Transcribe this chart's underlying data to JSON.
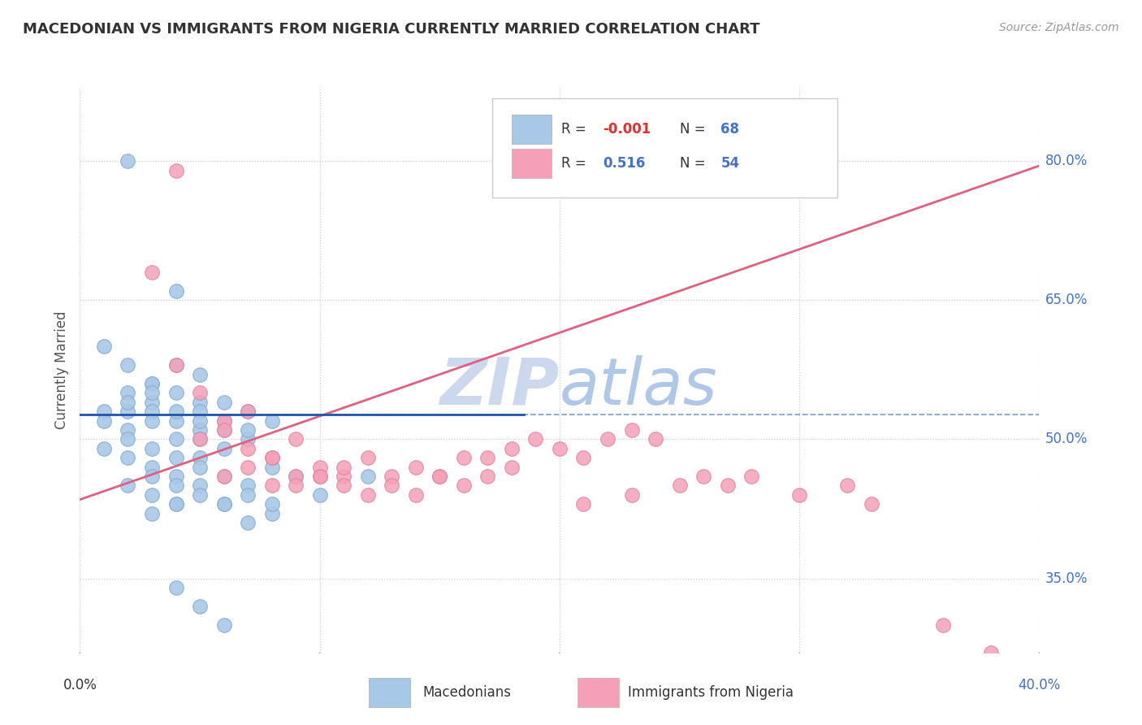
{
  "title": "MACEDONIAN VS IMMIGRANTS FROM NIGERIA CURRENTLY MARRIED CORRELATION CHART",
  "source": "Source: ZipAtlas.com",
  "ylabel": "Currently Married",
  "ytick_labels": [
    "35.0%",
    "50.0%",
    "65.0%",
    "80.0%"
  ],
  "ytick_values": [
    0.35,
    0.5,
    0.65,
    0.8
  ],
  "xlim": [
    0.0,
    0.4
  ],
  "ylim": [
    0.27,
    0.88
  ],
  "blue_R": "-0.001",
  "blue_N": "68",
  "pink_R": "0.516",
  "pink_N": "54",
  "blue_line_x0": 0.0,
  "blue_line_x1": 0.185,
  "blue_line_y": 0.527,
  "dashed_line_y": 0.527,
  "pink_line_x0": 0.0,
  "pink_line_y0": 0.435,
  "pink_line_x1": 0.4,
  "pink_line_y1": 0.795,
  "blue_color": "#a8c8e8",
  "pink_color": "#f5a0b8",
  "blue_edge_color": "#88aacc",
  "pink_edge_color": "#e080a0",
  "blue_line_color": "#2255aa",
  "pink_line_color": "#e06080",
  "dashed_line_color": "#7799cc",
  "watermark_color": "#ccd8ee",
  "blue_scatter_x": [
    0.02,
    0.04,
    0.01,
    0.02,
    0.03,
    0.04,
    0.05,
    0.01,
    0.02,
    0.03,
    0.03,
    0.04,
    0.05,
    0.02,
    0.03,
    0.04,
    0.05,
    0.06,
    0.01,
    0.02,
    0.03,
    0.04,
    0.05,
    0.06,
    0.07,
    0.02,
    0.03,
    0.04,
    0.05,
    0.06,
    0.07,
    0.08,
    0.02,
    0.03,
    0.04,
    0.05,
    0.06,
    0.07,
    0.01,
    0.02,
    0.03,
    0.04,
    0.05,
    0.03,
    0.04,
    0.05,
    0.06,
    0.07,
    0.08,
    0.09,
    0.02,
    0.03,
    0.04,
    0.05,
    0.1,
    0.12,
    0.06,
    0.07,
    0.08,
    0.04,
    0.03,
    0.05,
    0.06,
    0.07,
    0.08,
    0.04,
    0.05,
    0.06
  ],
  "blue_scatter_y": [
    0.8,
    0.66,
    0.6,
    0.58,
    0.56,
    0.55,
    0.54,
    0.53,
    0.53,
    0.54,
    0.56,
    0.58,
    0.57,
    0.55,
    0.53,
    0.52,
    0.53,
    0.54,
    0.52,
    0.51,
    0.52,
    0.5,
    0.51,
    0.52,
    0.53,
    0.54,
    0.55,
    0.53,
    0.52,
    0.51,
    0.5,
    0.52,
    0.5,
    0.49,
    0.48,
    0.5,
    0.49,
    0.51,
    0.49,
    0.48,
    0.47,
    0.46,
    0.48,
    0.46,
    0.45,
    0.47,
    0.46,
    0.45,
    0.47,
    0.46,
    0.45,
    0.44,
    0.43,
    0.45,
    0.44,
    0.46,
    0.43,
    0.44,
    0.42,
    0.43,
    0.42,
    0.44,
    0.43,
    0.41,
    0.43,
    0.34,
    0.32,
    0.3
  ],
  "pink_scatter_x": [
    0.04,
    0.03,
    0.04,
    0.05,
    0.06,
    0.07,
    0.05,
    0.06,
    0.07,
    0.08,
    0.09,
    0.06,
    0.07,
    0.08,
    0.09,
    0.1,
    0.11,
    0.08,
    0.1,
    0.11,
    0.12,
    0.13,
    0.09,
    0.1,
    0.11,
    0.12,
    0.14,
    0.15,
    0.16,
    0.13,
    0.14,
    0.15,
    0.16,
    0.17,
    0.18,
    0.17,
    0.18,
    0.19,
    0.2,
    0.21,
    0.22,
    0.23,
    0.24,
    0.21,
    0.23,
    0.25,
    0.26,
    0.27,
    0.28,
    0.3,
    0.32,
    0.33,
    0.36,
    0.38
  ],
  "pink_scatter_y": [
    0.79,
    0.68,
    0.58,
    0.55,
    0.52,
    0.53,
    0.5,
    0.51,
    0.49,
    0.48,
    0.5,
    0.46,
    0.47,
    0.48,
    0.46,
    0.47,
    0.46,
    0.45,
    0.46,
    0.47,
    0.48,
    0.46,
    0.45,
    0.46,
    0.45,
    0.44,
    0.47,
    0.46,
    0.48,
    0.45,
    0.44,
    0.46,
    0.45,
    0.46,
    0.47,
    0.48,
    0.49,
    0.5,
    0.49,
    0.48,
    0.5,
    0.51,
    0.5,
    0.43,
    0.44,
    0.45,
    0.46,
    0.45,
    0.46,
    0.44,
    0.45,
    0.43,
    0.3,
    0.27
  ]
}
